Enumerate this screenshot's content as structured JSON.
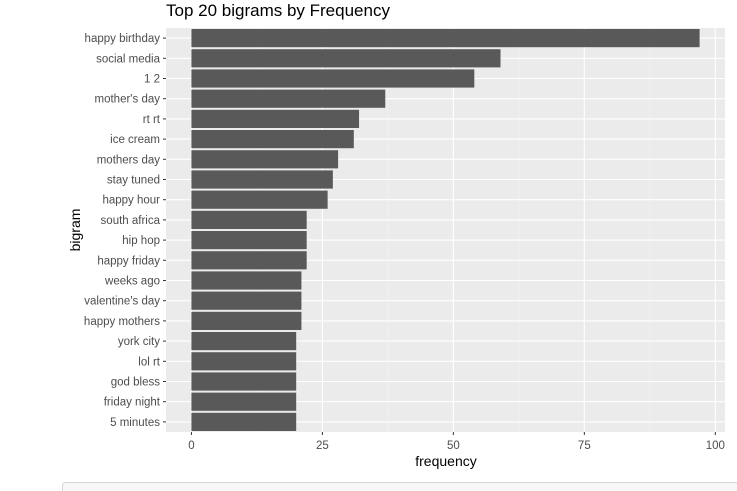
{
  "chart_data": {
    "type": "bar",
    "orientation": "horizontal",
    "title": "Top 20 bigrams by Frequency",
    "xlabel": "frequency",
    "ylabel": "bigram",
    "xlim": [
      -4.85,
      101.85
    ],
    "x_ticks": [
      0,
      25,
      50,
      75,
      100
    ],
    "grid": true,
    "categories": [
      "happy birthday",
      "social media",
      "1 2",
      "mother's day",
      "rt rt",
      "ice cream",
      "mothers day",
      "stay tuned",
      "happy hour",
      "south africa",
      "hip hop",
      "happy friday",
      "weeks ago",
      "valentine's day",
      "happy mothers",
      "york city",
      "lol rt",
      "god bless",
      "friday night",
      "5 minutes"
    ],
    "values": [
      97,
      59,
      54,
      37,
      32,
      31,
      28,
      27,
      26,
      22,
      22,
      22,
      21,
      21,
      21,
      20,
      20,
      20,
      20,
      20
    ]
  },
  "colors": {
    "panel": "#ebebeb",
    "grid_major": "#ffffff",
    "bar": "#595959",
    "text": "#4d4d4d",
    "title": "#000000"
  }
}
